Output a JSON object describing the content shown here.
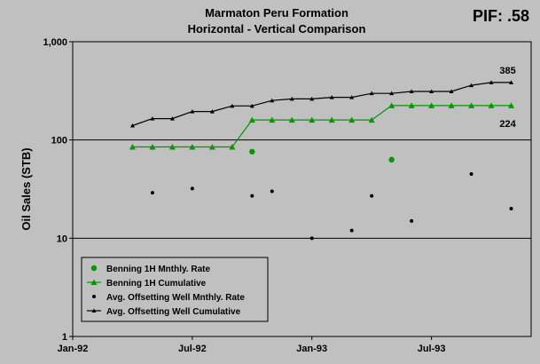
{
  "chart_data": {
    "type": "line",
    "title": "Marmaton Peru Formation",
    "subtitle": "Horizontal - Vertical Comparison",
    "badge": "PIF: .58",
    "ylabel": "Oil Sales (STB)",
    "xlabel": "",
    "yscale": "log",
    "ylim": [
      1,
      1000
    ],
    "xlim": [
      "1992-01",
      "1993-12"
    ],
    "grid": "horizontal",
    "y_ticks": [
      {
        "value": 1,
        "label": "1"
      },
      {
        "value": 10,
        "label": "10"
      },
      {
        "value": 100,
        "label": "100"
      },
      {
        "value": 1000,
        "label": "1,000"
      }
    ],
    "x_ticks": [
      {
        "value": "1992-01",
        "label": "Jan-92"
      },
      {
        "value": "1992-07",
        "label": "Jul-92"
      },
      {
        "value": "1993-01",
        "label": "Jan-93"
      },
      {
        "value": "1993-07",
        "label": "Jul-93"
      }
    ],
    "legend_position": "bottom-left",
    "colors": {
      "background": "#c0c0c0",
      "green": "#009900",
      "black": "#000000",
      "grid": "#000000"
    },
    "series": [
      {
        "name": "Benning 1H Mnthly. Rate",
        "style": "markers",
        "marker": "circle",
        "color": "#009900",
        "points": [
          {
            "x": "1992-10",
            "y": 76
          },
          {
            "x": "1993-05",
            "y": 63
          }
        ]
      },
      {
        "name": "Benning 1H Cumulative",
        "style": "line",
        "marker": "triangle",
        "color": "#009900",
        "points": [
          {
            "x": "1992-04",
            "y": 85
          },
          {
            "x": "1992-05",
            "y": 85
          },
          {
            "x": "1992-06",
            "y": 85
          },
          {
            "x": "1992-07",
            "y": 85
          },
          {
            "x": "1992-08",
            "y": 85
          },
          {
            "x": "1992-09",
            "y": 85
          },
          {
            "x": "1992-10",
            "y": 160
          },
          {
            "x": "1992-11",
            "y": 160
          },
          {
            "x": "1992-12",
            "y": 160
          },
          {
            "x": "1993-01",
            "y": 160
          },
          {
            "x": "1993-02",
            "y": 160
          },
          {
            "x": "1993-03",
            "y": 160
          },
          {
            "x": "1993-04",
            "y": 160
          },
          {
            "x": "1993-05",
            "y": 224
          },
          {
            "x": "1993-06",
            "y": 224
          },
          {
            "x": "1993-07",
            "y": 224
          },
          {
            "x": "1993-08",
            "y": 224
          },
          {
            "x": "1993-09",
            "y": 224
          },
          {
            "x": "1993-10",
            "y": 224
          },
          {
            "x": "1993-11",
            "y": 224
          }
        ]
      },
      {
        "name": "Avg. Offsetting Well Mnthly. Rate",
        "style": "markers",
        "marker": "dot",
        "color": "#000000",
        "points": [
          {
            "x": "1992-05",
            "y": 29
          },
          {
            "x": "1992-07",
            "y": 32
          },
          {
            "x": "1992-10",
            "y": 27
          },
          {
            "x": "1992-11",
            "y": 30
          },
          {
            "x": "1993-01",
            "y": 10
          },
          {
            "x": "1993-03",
            "y": 12
          },
          {
            "x": "1993-04",
            "y": 27
          },
          {
            "x": "1993-06",
            "y": 15
          },
          {
            "x": "1993-09",
            "y": 45
          },
          {
            "x": "1993-11",
            "y": 20
          }
        ]
      },
      {
        "name": "Avg. Offsetting Well Cumulative",
        "style": "line",
        "marker": "triangle-small",
        "color": "#000000",
        "points": [
          {
            "x": "1992-04",
            "y": 140
          },
          {
            "x": "1992-05",
            "y": 165
          },
          {
            "x": "1992-06",
            "y": 165
          },
          {
            "x": "1992-07",
            "y": 195
          },
          {
            "x": "1992-08",
            "y": 195
          },
          {
            "x": "1992-09",
            "y": 222
          },
          {
            "x": "1992-10",
            "y": 222
          },
          {
            "x": "1992-11",
            "y": 252
          },
          {
            "x": "1992-12",
            "y": 262
          },
          {
            "x": "1993-01",
            "y": 262
          },
          {
            "x": "1993-02",
            "y": 272
          },
          {
            "x": "1993-03",
            "y": 272
          },
          {
            "x": "1993-04",
            "y": 298
          },
          {
            "x": "1993-05",
            "y": 298
          },
          {
            "x": "1993-06",
            "y": 312
          },
          {
            "x": "1993-07",
            "y": 312
          },
          {
            "x": "1993-08",
            "y": 312
          },
          {
            "x": "1993-09",
            "y": 360
          },
          {
            "x": "1993-10",
            "y": 385
          },
          {
            "x": "1993-11",
            "y": 385
          }
        ]
      }
    ],
    "annotations": [
      {
        "text": "385",
        "x": "1993-11",
        "y": 385,
        "anchor": "above"
      },
      {
        "text": "224",
        "x": "1993-11",
        "y": 224,
        "anchor": "below"
      }
    ]
  }
}
